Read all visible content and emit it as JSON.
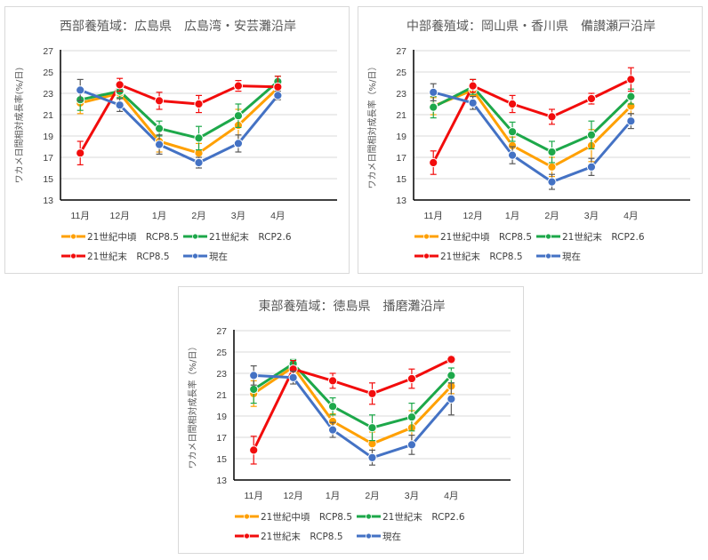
{
  "colors": {
    "orange": "#FFA000",
    "green": "#1DA84A",
    "red": "#F20C0C",
    "blue": "#4472C4",
    "grid": "#d9d9d9",
    "axis": "#000000",
    "errorbar_gray": "#595959"
  },
  "legend": [
    {
      "name": "21世紀中頃　RCP8.5",
      "color": "#FFA000"
    },
    {
      "name": "21世紀末　RCP2.6",
      "color": "#1DA84A"
    },
    {
      "name": "21世紀末　RCP8.5",
      "color": "#F20C0C"
    },
    {
      "name": "現在",
      "color": "#4472C4"
    }
  ],
  "chart_data": [
    {
      "type": "line",
      "title": "西部養殖域：広島県　広島湾・安芸灘沿岸",
      "xlabel": "",
      "ylabel": "ワカメ日間相対成長率(%/日)",
      "categories": [
        "11月",
        "12月",
        "1月",
        "2月",
        "3月",
        "4月"
      ],
      "ylim": [
        13,
        27
      ],
      "yticks": [
        "13",
        "15",
        "17",
        "19",
        "21",
        "23",
        "25",
        "27"
      ],
      "grid": true,
      "legend_position": "bottom",
      "error_bars": true,
      "series": [
        {
          "name": "21世紀中頃　RCP8.5",
          "values": [
            22.1,
            23.0,
            18.5,
            17.4,
            20.0,
            23.5
          ],
          "errors": [
            1.0,
            0.5,
            1.0,
            0.9,
            1.5,
            0.6
          ]
        },
        {
          "name": "21世紀末　RCP2.6",
          "values": [
            22.4,
            23.2,
            19.7,
            18.8,
            20.9,
            24.1
          ],
          "errors": [
            1.0,
            0.6,
            0.7,
            1.1,
            1.1,
            0.5
          ]
        },
        {
          "name": "21世紀末　RCP8.5",
          "values": [
            17.4,
            23.8,
            22.3,
            22.0,
            23.7,
            23.6
          ],
          "errors": [
            1.1,
            0.6,
            0.8,
            0.8,
            0.5,
            1.0
          ]
        },
        {
          "name": "現在",
          "values": [
            23.3,
            21.9,
            18.2,
            16.5,
            18.3,
            22.8
          ],
          "errors": [
            1.0,
            0.6,
            0.9,
            0.5,
            0.8,
            0.4
          ]
        }
      ]
    },
    {
      "type": "line",
      "title": "中部養殖域：岡山県・香川県　備讃瀬戸沿岸",
      "xlabel": "",
      "ylabel": "ワカメ日間相対成長率（%/日）",
      "categories": [
        "11月",
        "12月",
        "1月",
        "2月",
        "3月",
        "4月"
      ],
      "ylim": [
        13,
        27
      ],
      "yticks": [
        "13",
        "15",
        "17",
        "19",
        "21",
        "23",
        "25",
        "27"
      ],
      "grid": true,
      "legend_position": "bottom",
      "error_bars": true,
      "series": [
        {
          "name": "21世紀中頃　RCP8.5",
          "values": [
            21.8,
            23.3,
            18.1,
            16.1,
            18.1,
            21.8
          ],
          "errors": [
            0.8,
            0.5,
            0.8,
            0.9,
            1.5,
            0.7
          ]
        },
        {
          "name": "21世紀末　RCP2.6",
          "values": [
            21.7,
            23.6,
            19.4,
            17.5,
            19.1,
            22.7
          ],
          "errors": [
            1.0,
            0.7,
            0.9,
            1.0,
            1.3,
            0.7
          ]
        },
        {
          "name": "21世紀末　RCP8.5",
          "values": [
            16.5,
            23.7,
            22.0,
            20.8,
            22.5,
            24.3
          ],
          "errors": [
            1.1,
            0.6,
            0.8,
            0.7,
            0.5,
            1.1
          ]
        },
        {
          "name": "現在",
          "values": [
            23.1,
            22.1,
            17.2,
            14.7,
            16.1,
            20.4
          ],
          "errors": [
            0.8,
            0.6,
            0.8,
            0.7,
            0.8,
            0.7
          ]
        }
      ]
    },
    {
      "type": "line",
      "title": "東部養殖域：徳島県　播磨灘沿岸",
      "xlabel": "",
      "ylabel": "ワカメ日間相対成長率（%/日）",
      "categories": [
        "11月",
        "12月",
        "1月",
        "2月",
        "3月",
        "4月"
      ],
      "ylim": [
        13,
        27
      ],
      "yticks": [
        "13",
        "15",
        "17",
        "19",
        "21",
        "23",
        "25",
        "27"
      ],
      "grid": true,
      "legend_position": "bottom",
      "error_bars": true,
      "series": [
        {
          "name": "21世紀中頃　RCP8.5",
          "values": [
            21.1,
            23.6,
            18.5,
            16.4,
            17.9,
            21.8
          ],
          "errors": [
            1.2,
            0.5,
            0.7,
            1.1,
            1.6,
            0.7
          ]
        },
        {
          "name": "21世紀末　RCP2.6",
          "values": [
            21.5,
            23.9,
            19.9,
            17.9,
            18.9,
            22.8
          ],
          "errors": [
            1.3,
            0.4,
            0.8,
            1.2,
            1.3,
            0.7
          ]
        },
        {
          "name": "21世紀末　RCP8.5",
          "values": [
            15.8,
            23.4,
            22.3,
            21.1,
            22.5,
            24.3
          ],
          "errors": [
            1.3,
            0.8,
            0.7,
            1.0,
            0.9,
            0.3
          ]
        },
        {
          "name": "現在",
          "values": [
            22.8,
            22.6,
            17.7,
            15.1,
            16.3,
            20.6
          ],
          "errors": [
            0.9,
            0.6,
            0.7,
            0.7,
            0.9,
            1.5
          ]
        }
      ]
    }
  ]
}
